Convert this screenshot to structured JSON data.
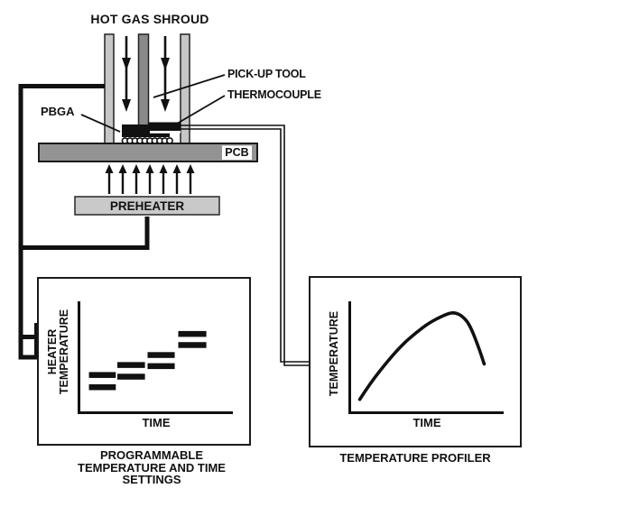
{
  "diagram": {
    "title": "HOT GAS SHROUD",
    "pickup_tool_label": "PICK-UP TOOL",
    "thermocouple_label": "THERMOCOUPLE",
    "pbga_label": "PBGA",
    "pcb_label": "PCB",
    "preheater_label": "PREHEATER"
  },
  "left_chart": {
    "ylabel_line1": "HEATER",
    "ylabel_line2": "TEMPERATURE",
    "xlabel": "TIME",
    "caption": [
      "PROGRAMMABLE",
      "TEMPERATURE AND TIME",
      "SETTINGS"
    ]
  },
  "right_chart": {
    "ylabel": "TEMPERATURE",
    "xlabel": "TIME",
    "caption": "TEMPERATURE PROFILER"
  },
  "chart_data": [
    {
      "type": "bar",
      "title": "PROGRAMMABLE TEMPERATURE AND TIME SETTINGS",
      "xlabel": "TIME",
      "ylabel": "HEATER TEMPERATURE",
      "axes_ticks": "none (qualitative sketch)",
      "description": "Four ascending stair-step heater setpoint segments, each drawn as a pair of thick black bars (upper and lower setting), temperature and time in normalized 0-1 axis units",
      "steps": [
        {
          "t": [
            0.065,
            0.24
          ],
          "upper": 0.34,
          "lower": 0.23
        },
        {
          "t": [
            0.25,
            0.43
          ],
          "upper": 0.43,
          "lower": 0.325
        },
        {
          "t": [
            0.447,
            0.624
          ],
          "upper": 0.52,
          "lower": 0.42
        },
        {
          "t": [
            0.647,
            0.83
          ],
          "upper": 0.71,
          "lower": 0.61
        }
      ]
    },
    {
      "type": "line",
      "title": "TEMPERATURE PROFILER",
      "xlabel": "TIME",
      "ylabel": "TEMPERATURE",
      "axes_ticks": "none (qualitative sketch)",
      "description": "Single reflow-profile curve: gradual rise to a rounded peak then a steeper fall, in normalized 0-1 axis units",
      "points": [
        [
          0.065,
          0.12
        ],
        [
          0.135,
          0.27
        ],
        [
          0.25,
          0.47
        ],
        [
          0.34,
          0.61
        ],
        [
          0.43,
          0.72
        ],
        [
          0.517,
          0.81
        ],
        [
          0.6,
          0.87
        ],
        [
          0.655,
          0.9
        ],
        [
          0.69,
          0.9
        ],
        [
          0.73,
          0.875
        ],
        [
          0.78,
          0.8
        ],
        [
          0.84,
          0.59
        ],
        [
          0.876,
          0.44
        ]
      ]
    }
  ],
  "colors": {
    "wall_gray": "#c6c6c6",
    "tool_gray": "#8a8a8a",
    "pcb_gray": "#939393",
    "preheater_gray": "#c9c9c9",
    "ink": "#111111",
    "background": "#ffffff"
  }
}
